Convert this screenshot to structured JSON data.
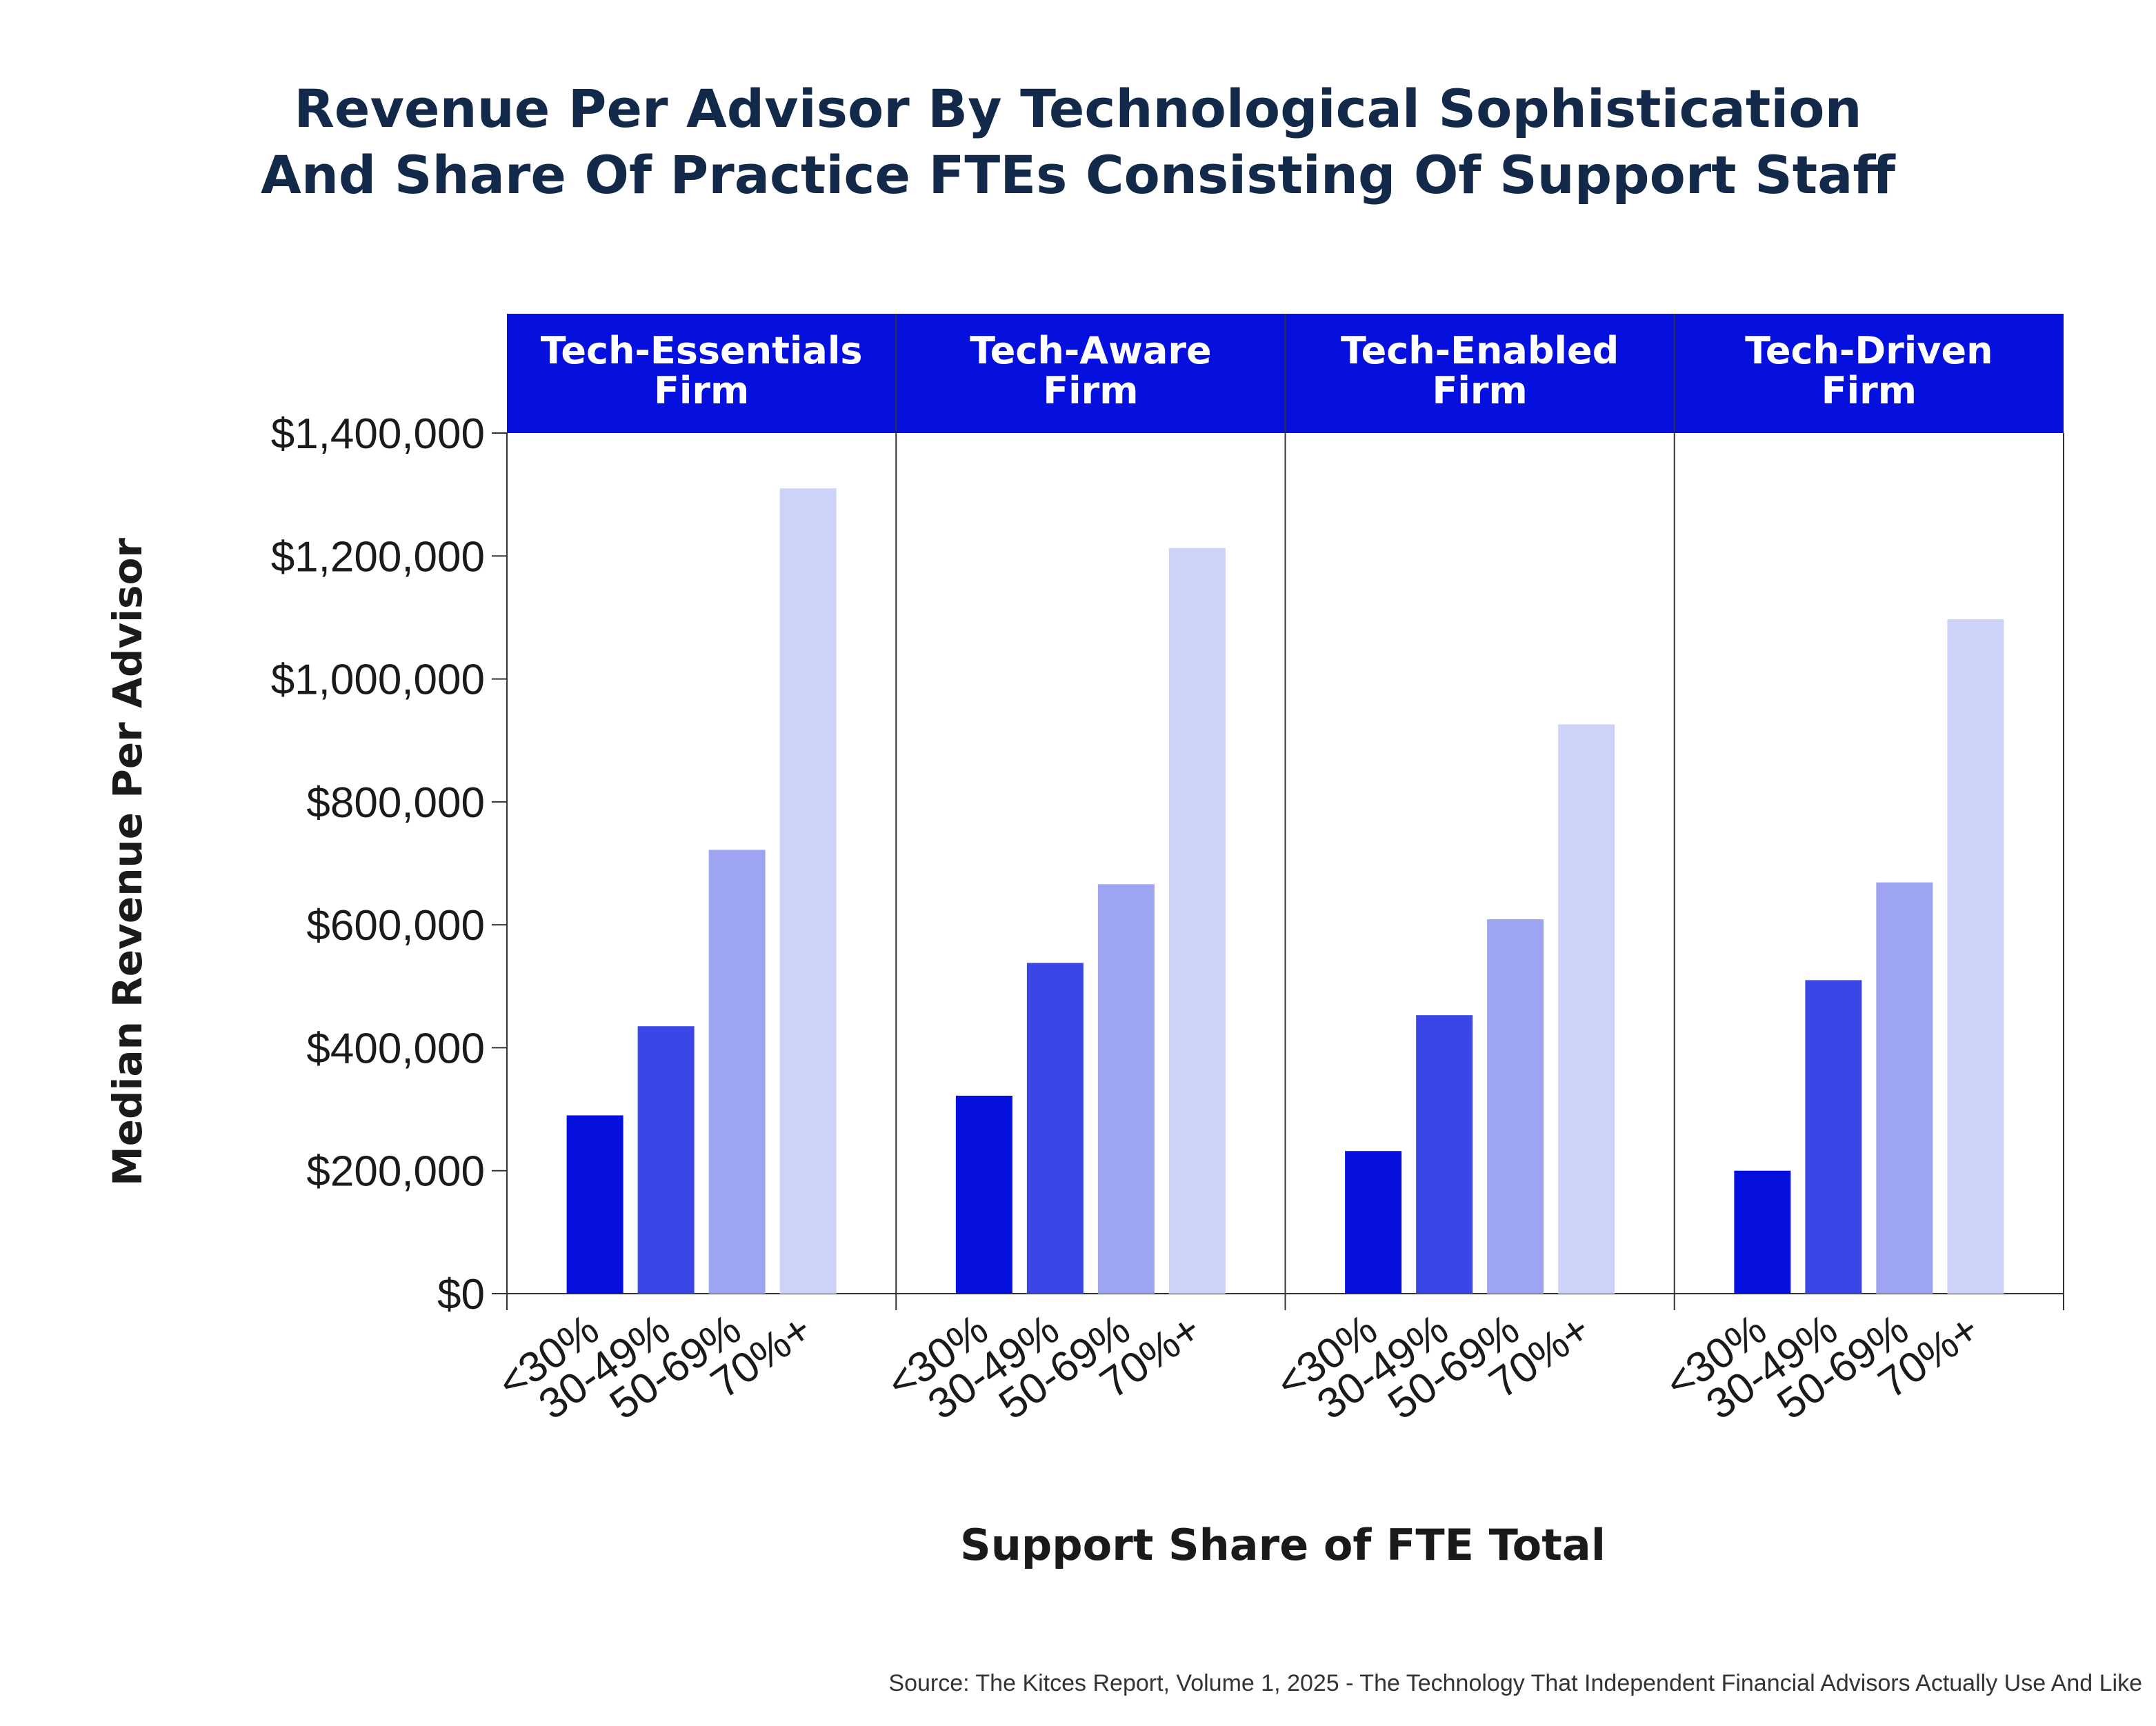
{
  "title": {
    "line1": "Revenue Per Advisor By Technological Sophistication",
    "line2": "And Share Of Practice FTEs Consisting Of Support Staff"
  },
  "source": "Source: The Kitces Report, Volume 1, 2025 - The Technology That Independent Financial Advisors Actually Use And Like",
  "chart_data": {
    "type": "bar",
    "ylabel": "Median Revenue Per Advisor",
    "xlabel": "Support Share of FTE Total",
    "ylim": [
      0,
      1400000
    ],
    "y_ticks": [
      0,
      200000,
      400000,
      600000,
      800000,
      1000000,
      1200000,
      1400000
    ],
    "y_tick_labels": [
      "$0",
      "$200,000",
      "$400,000",
      "$600,000",
      "$800,000",
      "$1,000,000",
      "$1,200,000",
      "$1,400,000"
    ],
    "categories": [
      "<30%",
      "30-49%",
      "50-69%",
      "70%+"
    ],
    "series_colors": [
      "#0610de",
      "#3a47e6",
      "#9da4f2",
      "#cdd2f8"
    ],
    "header_color": "#0610de",
    "panels": [
      {
        "label_line1": "Tech-Essentials",
        "label_line2": "Firm",
        "values": [
          290000,
          435000,
          722000,
          1310000
        ]
      },
      {
        "label_line1": "Tech-Aware",
        "label_line2": "Firm",
        "values": [
          322000,
          538000,
          666000,
          1213000
        ]
      },
      {
        "label_line1": "Tech-Enabled",
        "label_line2": "Firm",
        "values": [
          232000,
          453000,
          609000,
          926000
        ]
      },
      {
        "label_line1": "Tech-Driven",
        "label_line2": "Firm",
        "values": [
          200000,
          510000,
          669000,
          1097000
        ]
      }
    ],
    "grid": false
  }
}
